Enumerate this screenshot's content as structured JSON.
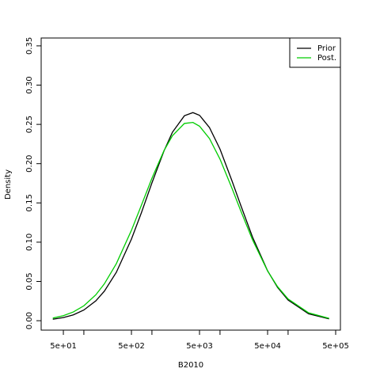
{
  "chart_data": {
    "type": "line",
    "xlabel": "B2010",
    "ylabel": "Density",
    "xscale": "log",
    "x": [
      35,
      50,
      70,
      100,
      150,
      200,
      300,
      500,
      700,
      1000,
      1500,
      2000,
      3000,
      4000,
      5000,
      7000,
      10000,
      15000,
      20000,
      30000,
      50000,
      70000,
      100000,
      200000,
      400000
    ],
    "series": [
      {
        "name": "Prior",
        "color": "#000000",
        "values": [
          0.0019,
          0.004,
          0.0074,
          0.0136,
          0.0253,
          0.0376,
          0.0616,
          0.1039,
          0.1375,
          0.1755,
          0.216,
          0.24,
          0.261,
          0.265,
          0.2616,
          0.246,
          0.2185,
          0.178,
          0.1478,
          0.1066,
          0.0635,
          0.0425,
          0.0263,
          0.0088,
          0.0024
        ]
      },
      {
        "name": "Post.",
        "color": "#00cd00",
        "values": [
          0.0033,
          0.0064,
          0.0111,
          0.019,
          0.033,
          0.0469,
          0.0726,
          0.1151,
          0.147,
          0.1814,
          0.2164,
          0.2356,
          0.2512,
          0.2525,
          0.2477,
          0.232,
          0.2057,
          0.1686,
          0.1407,
          0.1031,
          0.0633,
          0.0434,
          0.0277,
          0.01,
          0.003
        ]
      }
    ],
    "xlim": [
      23.6,
      587000
    ],
    "ylim": [
      -0.012,
      0.36
    ],
    "xticks": [
      {
        "value": 50,
        "label": "5e+01"
      },
      {
        "value": 500,
        "label": "5e+02"
      },
      {
        "value": 5000,
        "label": "5e+03"
      },
      {
        "value": 50000,
        "label": "5e+04"
      },
      {
        "value": 500000,
        "label": "5e+05"
      }
    ],
    "xminorticks": [
      100,
      1000,
      10000,
      100000
    ],
    "yticks": [
      {
        "value": 0,
        "label": "0.00"
      },
      {
        "value": 0.05,
        "label": "0.05"
      },
      {
        "value": 0.1,
        "label": "0.10"
      },
      {
        "value": 0.15,
        "label": "0.15"
      },
      {
        "value": 0.2,
        "label": "0.20"
      },
      {
        "value": 0.25,
        "label": "0.25"
      },
      {
        "value": 0.3,
        "label": "0.30"
      },
      {
        "value": 0.35,
        "label": "0.35"
      }
    ],
    "legend": "top-right",
    "grid": false
  }
}
